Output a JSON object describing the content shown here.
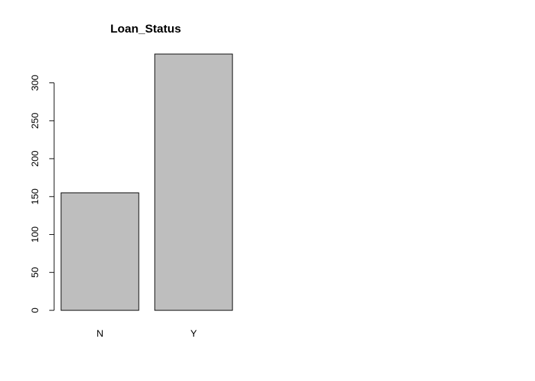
{
  "chart_data": {
    "type": "bar",
    "title": "Loan_Status",
    "categories": [
      "N",
      "Y"
    ],
    "values": [
      155,
      338
    ],
    "color": "#bebebe",
    "ylim": [
      0,
      338
    ],
    "yticks": [
      0,
      50,
      100,
      150,
      200,
      250,
      300
    ]
  }
}
